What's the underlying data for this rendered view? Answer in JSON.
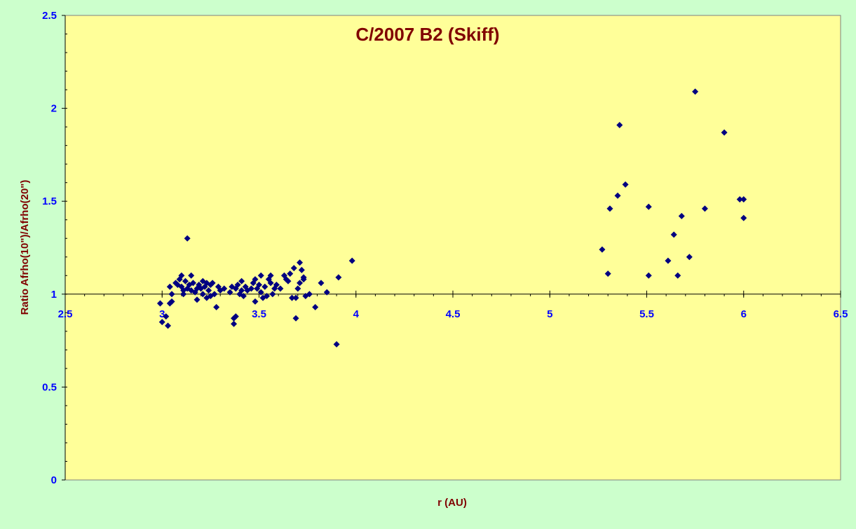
{
  "chart_data": {
    "type": "scatter",
    "title": "C/2007 B2 (Skiff)",
    "xlabel": "r (AU)",
    "ylabel": "Ratio Afrho(10\")/Afrho(20\")",
    "xlim": [
      2.5,
      6.5
    ],
    "ylim": [
      0,
      2.5
    ],
    "x_ticks": [
      "2.5",
      "3",
      "3.5",
      "4",
      "4.5",
      "5",
      "5.5",
      "6",
      "6.5"
    ],
    "y_ticks": [
      "0",
      "0.5",
      "1",
      "1.5",
      "2",
      "2.5"
    ],
    "x_axis_crosses_at_y": 1,
    "grid": false,
    "legend": false,
    "colors": {
      "background": "#ccffcc",
      "plot_area": "#ffff99",
      "marker": "#000080",
      "tick_labels": "#0000ff",
      "titles": "#800000"
    },
    "series": [
      {
        "marker": "diamond",
        "points": [
          [
            2.99,
            0.95
          ],
          [
            3.0,
            0.85
          ],
          [
            3.02,
            0.88
          ],
          [
            3.03,
            0.83
          ],
          [
            3.04,
            0.95
          ],
          [
            3.05,
            0.96
          ],
          [
            3.04,
            1.04
          ],
          [
            3.05,
            1.0
          ],
          [
            3.07,
            1.06
          ],
          [
            3.08,
            1.05
          ],
          [
            3.09,
            1.08
          ],
          [
            3.1,
            1.1
          ],
          [
            3.1,
            1.04
          ],
          [
            3.11,
            1.0
          ],
          [
            3.11,
            1.02
          ],
          [
            3.12,
            1.07
          ],
          [
            3.13,
            1.3
          ],
          [
            3.13,
            1.03
          ],
          [
            3.14,
            1.05
          ],
          [
            3.15,
            1.1
          ],
          [
            3.15,
            1.02
          ],
          [
            3.16,
            1.06
          ],
          [
            3.17,
            1.01
          ],
          [
            3.18,
            1.03
          ],
          [
            3.18,
            0.97
          ],
          [
            3.19,
            1.05
          ],
          [
            3.2,
            1.03
          ],
          [
            3.21,
            1.07
          ],
          [
            3.21,
            1.0
          ],
          [
            3.22,
            1.04
          ],
          [
            3.23,
            1.06
          ],
          [
            3.23,
            0.98
          ],
          [
            3.24,
            1.02
          ],
          [
            3.25,
            1.05
          ],
          [
            3.25,
            0.99
          ],
          [
            3.26,
            1.06
          ],
          [
            3.27,
            1.0
          ],
          [
            3.28,
            0.93
          ],
          [
            3.29,
            1.04
          ],
          [
            3.3,
            1.02
          ],
          [
            3.32,
            1.03
          ],
          [
            3.35,
            1.01
          ],
          [
            3.36,
            1.04
          ],
          [
            3.37,
            0.87
          ],
          [
            3.37,
            0.84
          ],
          [
            3.38,
            0.88
          ],
          [
            3.38,
            1.03
          ],
          [
            3.39,
            1.05
          ],
          [
            3.4,
            1.0
          ],
          [
            3.41,
            1.07
          ],
          [
            3.41,
            1.02
          ],
          [
            3.42,
            0.99
          ],
          [
            3.43,
            1.04
          ],
          [
            3.44,
            1.02
          ],
          [
            3.46,
            1.03
          ],
          [
            3.47,
            1.06
          ],
          [
            3.48,
            1.08
          ],
          [
            3.48,
            0.96
          ],
          [
            3.49,
            1.03
          ],
          [
            3.5,
            1.05
          ],
          [
            3.51,
            1.1
          ],
          [
            3.51,
            1.01
          ],
          [
            3.52,
            0.98
          ],
          [
            3.53,
            1.04
          ],
          [
            3.54,
            0.99
          ],
          [
            3.55,
            1.08
          ],
          [
            3.56,
            1.06
          ],
          [
            3.56,
            1.1
          ],
          [
            3.57,
            1.0
          ],
          [
            3.58,
            1.03
          ],
          [
            3.59,
            1.05
          ],
          [
            3.61,
            1.03
          ],
          [
            3.63,
            1.1
          ],
          [
            3.64,
            1.08
          ],
          [
            3.65,
            1.07
          ],
          [
            3.66,
            1.11
          ],
          [
            3.67,
            0.98
          ],
          [
            3.68,
            1.14
          ],
          [
            3.69,
            0.87
          ],
          [
            3.69,
            0.98
          ],
          [
            3.7,
            1.03
          ],
          [
            3.71,
            1.06
          ],
          [
            3.71,
            1.17
          ],
          [
            3.72,
            1.13
          ],
          [
            3.73,
            1.08
          ],
          [
            3.73,
            1.09
          ],
          [
            3.74,
            0.99
          ],
          [
            3.76,
            1.0
          ],
          [
            3.79,
            0.93
          ],
          [
            3.82,
            1.06
          ],
          [
            3.85,
            1.01
          ],
          [
            3.9,
            0.73
          ],
          [
            3.91,
            1.09
          ],
          [
            3.98,
            1.18
          ],
          [
            5.27,
            1.24
          ],
          [
            5.3,
            1.11
          ],
          [
            5.31,
            1.46
          ],
          [
            5.35,
            1.53
          ],
          [
            5.36,
            1.91
          ],
          [
            5.39,
            1.59
          ],
          [
            5.51,
            1.47
          ],
          [
            5.51,
            1.1
          ],
          [
            5.61,
            1.18
          ],
          [
            5.64,
            1.32
          ],
          [
            5.66,
            1.1
          ],
          [
            5.68,
            1.42
          ],
          [
            5.72,
            1.2
          ],
          [
            5.75,
            2.09
          ],
          [
            5.8,
            1.46
          ],
          [
            5.9,
            1.87
          ],
          [
            5.98,
            1.51
          ],
          [
            6.0,
            1.51
          ],
          [
            6.0,
            1.41
          ]
        ]
      }
    ]
  }
}
